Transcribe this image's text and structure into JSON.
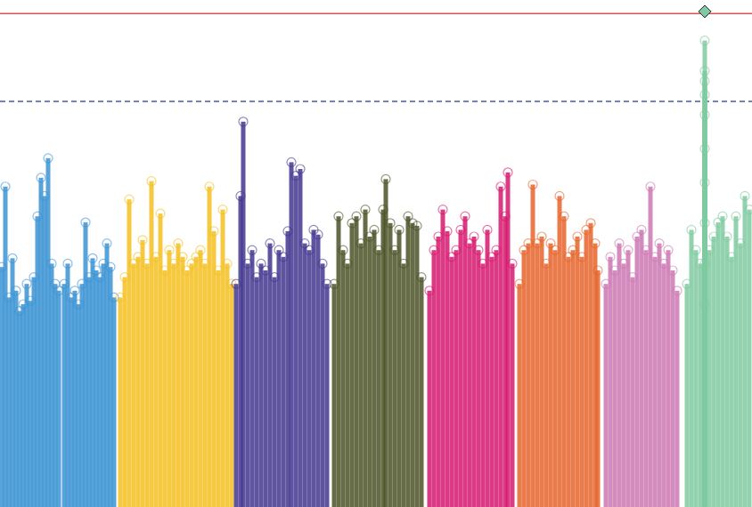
{
  "chart_data": {
    "type": "scatter",
    "marker": "circle",
    "grid": false,
    "tick_labels": false,
    "xlim": [
      0,
      844
    ],
    "ylim": [
      0,
      7.5
    ],
    "series": [
      {
        "color": "#3b93d4",
        "x": [
          2,
          6,
          10,
          14,
          18,
          22,
          26,
          30,
          34,
          38,
          42,
          46,
          50,
          54,
          58,
          62,
          66
        ],
        "values": [
          3.55,
          4.74,
          3.1,
          3.68,
          3.2,
          2.9,
          3.0,
          3.3,
          3.05,
          3.4,
          4.3,
          4.87,
          4.6,
          5.16,
          3.6,
          3.3,
          3.2
        ]
      },
      {
        "color": "#3b93d4",
        "x": [
          72,
          76,
          80,
          84,
          88,
          92,
          96,
          100,
          104,
          108,
          112,
          116,
          120,
          124,
          128
        ],
        "values": [
          3.3,
          3.6,
          3.1,
          3.2,
          3.0,
          3.3,
          4.21,
          3.4,
          3.68,
          3.5,
          3.4,
          3.6,
          3.9,
          3.55,
          3.1
        ]
      },
      {
        "color": "#f5bf1e",
        "x": [
          135,
          140,
          145,
          150,
          155,
          160,
          165,
          170,
          175,
          180,
          185,
          190,
          195,
          200,
          205,
          210,
          215,
          220,
          225,
          230,
          235,
          240,
          245,
          250,
          255,
          260
        ],
        "values": [
          3.1,
          3.4,
          4.55,
          3.6,
          3.7,
          3.95,
          3.6,
          4.82,
          3.7,
          4.34,
          3.5,
          3.8,
          3.6,
          3.9,
          3.7,
          3.5,
          3.6,
          3.7,
          3.8,
          3.6,
          4.74,
          4.08,
          3.5,
          4.4,
          3.6,
          3.3
        ]
      },
      {
        "color": "#43368f",
        "x": [
          265,
          270,
          273,
          278,
          283,
          288,
          293,
          298,
          303,
          308,
          313,
          318,
          323,
          327,
          332,
          337,
          342,
          347,
          352,
          357,
          362,
          367
        ],
        "values": [
          3.3,
          4.6,
          5.7,
          3.6,
          3.8,
          3.4,
          3.6,
          3.5,
          3.9,
          3.4,
          3.8,
          3.7,
          4.08,
          5.1,
          4.9,
          5.0,
          3.9,
          3.8,
          4.1,
          4.03,
          3.6,
          3.3
        ]
      },
      {
        "color": "#4a5226",
        "x": [
          375,
          380,
          385,
          390,
          395,
          400,
          405,
          410,
          415,
          420,
          425,
          430,
          433,
          438,
          443,
          448,
          453,
          458,
          463,
          468,
          473
        ],
        "values": [
          3.3,
          4.3,
          3.8,
          3.6,
          4.2,
          4.3,
          3.9,
          4.4,
          4.0,
          4.1,
          3.8,
          4.4,
          4.85,
          4.2,
          3.8,
          4.1,
          3.6,
          4.3,
          4.2,
          4.16,
          3.4
        ]
      },
      {
        "color": "#d6176e",
        "x": [
          482,
          487,
          492,
          497,
          502,
          507,
          512,
          517,
          522,
          527,
          532,
          537,
          542,
          547,
          552,
          557,
          562,
          567,
          570,
          575
        ],
        "values": [
          3.2,
          3.8,
          4.0,
          4.4,
          4.08,
          3.7,
          3.8,
          4.1,
          4.3,
          3.9,
          4.0,
          3.8,
          3.6,
          4.1,
          3.7,
          3.8,
          4.74,
          4.3,
          4.95,
          3.6
        ]
      },
      {
        "color": "#e6642a",
        "x": [
          583,
          588,
          593,
          598,
          603,
          608,
          613,
          618,
          623,
          628,
          633,
          638,
          643,
          648,
          653,
          658,
          663,
          668,
          671
        ],
        "values": [
          3.3,
          3.8,
          3.9,
          4.77,
          3.9,
          4.0,
          3.6,
          3.9,
          3.8,
          4.6,
          4.3,
          3.7,
          3.8,
          4.0,
          3.7,
          4.1,
          4.2,
          3.9,
          3.5
        ]
      },
      {
        "color": "#cc78b4",
        "x": [
          680,
          685,
          690,
          695,
          700,
          705,
          710,
          715,
          720,
          725,
          730,
          735,
          740,
          745,
          750,
          755,
          760
        ],
        "values": [
          3.3,
          3.7,
          3.5,
          3.9,
          3.6,
          3.8,
          3.4,
          4.0,
          4.1,
          3.8,
          4.74,
          3.7,
          3.9,
          3.6,
          3.8,
          3.5,
          3.2
        ]
      },
      {
        "color": "#7fcaa0",
        "x": [
          771,
          776,
          781,
          786,
          791,
          791,
          791,
          791,
          791,
          791,
          791,
          791,
          791,
          791,
          796,
          801,
          806,
          811,
          816,
          821,
          826,
          831,
          836,
          841
        ],
        "values": [
          3.3,
          4.1,
          3.8,
          3.6,
          3.0,
          3.6,
          4.2,
          4.8,
          5.3,
          5.8,
          6.1,
          6.3,
          6.45,
          6.9,
          3.8,
          4.0,
          4.21,
          4.3,
          4.0,
          3.7,
          4.3,
          3.9,
          4.6,
          4.4
        ]
      }
    ],
    "lead_point": {
      "x": 791,
      "value": 7.33,
      "color": "#7fcaa0",
      "marker": "diamond"
    },
    "reference_lines": [
      {
        "value": 7.3,
        "color": "#d9534f",
        "line_style": "solid"
      },
      {
        "value": 6,
        "color": "#4a5a9c",
        "line_style": "dashed"
      }
    ]
  }
}
